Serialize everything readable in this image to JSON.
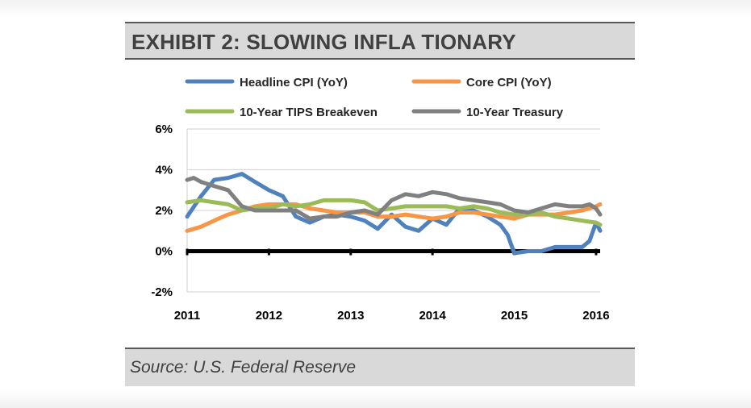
{
  "exhibit": {
    "title": "EXHIBIT 2: SLOWING INFLA TIONARY",
    "source": "Source: U.S. Federal Reserve"
  },
  "chart_data": {
    "type": "line",
    "title": "EXHIBIT 2: SLOWING INFLA TIONARY",
    "xlabel": "",
    "ylabel": "",
    "xlim": [
      2011.0,
      2016.05
    ],
    "ylim": [
      -2,
      6
    ],
    "x_ticks": [
      2011,
      2012,
      2013,
      2014,
      2015,
      2016
    ],
    "x_tick_labels": [
      "2011",
      "2012",
      "2013",
      "2014",
      "2015",
      "2016"
    ],
    "y_ticks": [
      -2,
      0,
      2,
      4,
      6
    ],
    "y_tick_labels": [
      "-2%",
      "0%",
      "2%",
      "4%",
      "6%"
    ],
    "grid": "horizontal",
    "legend_position": "top",
    "series": [
      {
        "name": "Headline CPI (YoY)",
        "color": "#4f81bd",
        "x": [
          2011.0,
          2011.17,
          2011.33,
          2011.5,
          2011.67,
          2011.83,
          2012.0,
          2012.17,
          2012.33,
          2012.5,
          2012.67,
          2012.83,
          2013.0,
          2013.17,
          2013.33,
          2013.5,
          2013.67,
          2013.83,
          2014.0,
          2014.17,
          2014.33,
          2014.5,
          2014.67,
          2014.83,
          2014.92,
          2015.0,
          2015.17,
          2015.33,
          2015.5,
          2015.67,
          2015.83,
          2015.92,
          2016.0,
          2016.05
        ],
        "y": [
          1.7,
          2.7,
          3.5,
          3.6,
          3.8,
          3.4,
          3.0,
          2.7,
          1.7,
          1.4,
          1.7,
          1.8,
          1.7,
          1.5,
          1.1,
          1.8,
          1.2,
          1.0,
          1.6,
          1.3,
          2.1,
          2.0,
          1.7,
          1.3,
          0.8,
          -0.1,
          0.0,
          0.0,
          0.2,
          0.2,
          0.2,
          0.5,
          1.4,
          1.0
        ]
      },
      {
        "name": "Core CPI (YoY)",
        "color": "#f79646",
        "x": [
          2011.0,
          2011.17,
          2011.33,
          2011.5,
          2011.67,
          2011.83,
          2012.0,
          2012.17,
          2012.33,
          2012.5,
          2012.67,
          2012.83,
          2013.0,
          2013.17,
          2013.33,
          2013.5,
          2013.67,
          2013.83,
          2014.0,
          2014.17,
          2014.33,
          2014.5,
          2014.67,
          2014.83,
          2015.0,
          2015.17,
          2015.33,
          2015.5,
          2015.67,
          2015.83,
          2016.0,
          2016.05
        ],
        "y": [
          1.0,
          1.2,
          1.5,
          1.8,
          2.0,
          2.2,
          2.3,
          2.3,
          2.3,
          2.1,
          2.0,
          1.9,
          1.9,
          1.9,
          1.7,
          1.7,
          1.8,
          1.7,
          1.6,
          1.7,
          1.9,
          1.9,
          1.8,
          1.7,
          1.6,
          1.8,
          1.8,
          1.8,
          1.9,
          2.0,
          2.2,
          2.3
        ]
      },
      {
        "name": "10-Year TIPS Breakeven",
        "color": "#9bbb59",
        "x": [
          2011.0,
          2011.17,
          2011.33,
          2011.5,
          2011.67,
          2011.83,
          2012.0,
          2012.17,
          2012.33,
          2012.5,
          2012.67,
          2012.83,
          2013.0,
          2013.17,
          2013.33,
          2013.5,
          2013.67,
          2013.83,
          2014.0,
          2014.17,
          2014.33,
          2014.5,
          2014.67,
          2014.83,
          2015.0,
          2015.17,
          2015.33,
          2015.5,
          2015.67,
          2015.83,
          2016.0,
          2016.05
        ],
        "y": [
          2.4,
          2.5,
          2.4,
          2.3,
          2.0,
          2.1,
          2.1,
          2.3,
          2.2,
          2.3,
          2.5,
          2.5,
          2.5,
          2.4,
          2.0,
          2.1,
          2.2,
          2.2,
          2.2,
          2.2,
          2.1,
          2.2,
          2.1,
          1.9,
          1.8,
          1.8,
          1.9,
          1.7,
          1.6,
          1.5,
          1.4,
          1.3
        ]
      },
      {
        "name": "10-Year Treasury",
        "color": "#808080",
        "x": [
          2011.0,
          2011.08,
          2011.17,
          2011.33,
          2011.5,
          2011.67,
          2011.83,
          2012.0,
          2012.17,
          2012.33,
          2012.5,
          2012.67,
          2012.83,
          2013.0,
          2013.17,
          2013.33,
          2013.5,
          2013.67,
          2013.83,
          2014.0,
          2014.17,
          2014.33,
          2014.5,
          2014.67,
          2014.83,
          2015.0,
          2015.17,
          2015.33,
          2015.5,
          2015.67,
          2015.83,
          2015.92,
          2016.0,
          2016.05
        ],
        "y": [
          3.5,
          3.6,
          3.4,
          3.2,
          3.0,
          2.2,
          2.0,
          2.0,
          2.0,
          2.0,
          1.6,
          1.7,
          1.7,
          1.9,
          2.0,
          1.8,
          2.5,
          2.8,
          2.7,
          2.9,
          2.8,
          2.6,
          2.5,
          2.4,
          2.3,
          2.0,
          1.9,
          2.1,
          2.3,
          2.2,
          2.2,
          2.3,
          2.1,
          1.8
        ]
      }
    ]
  }
}
